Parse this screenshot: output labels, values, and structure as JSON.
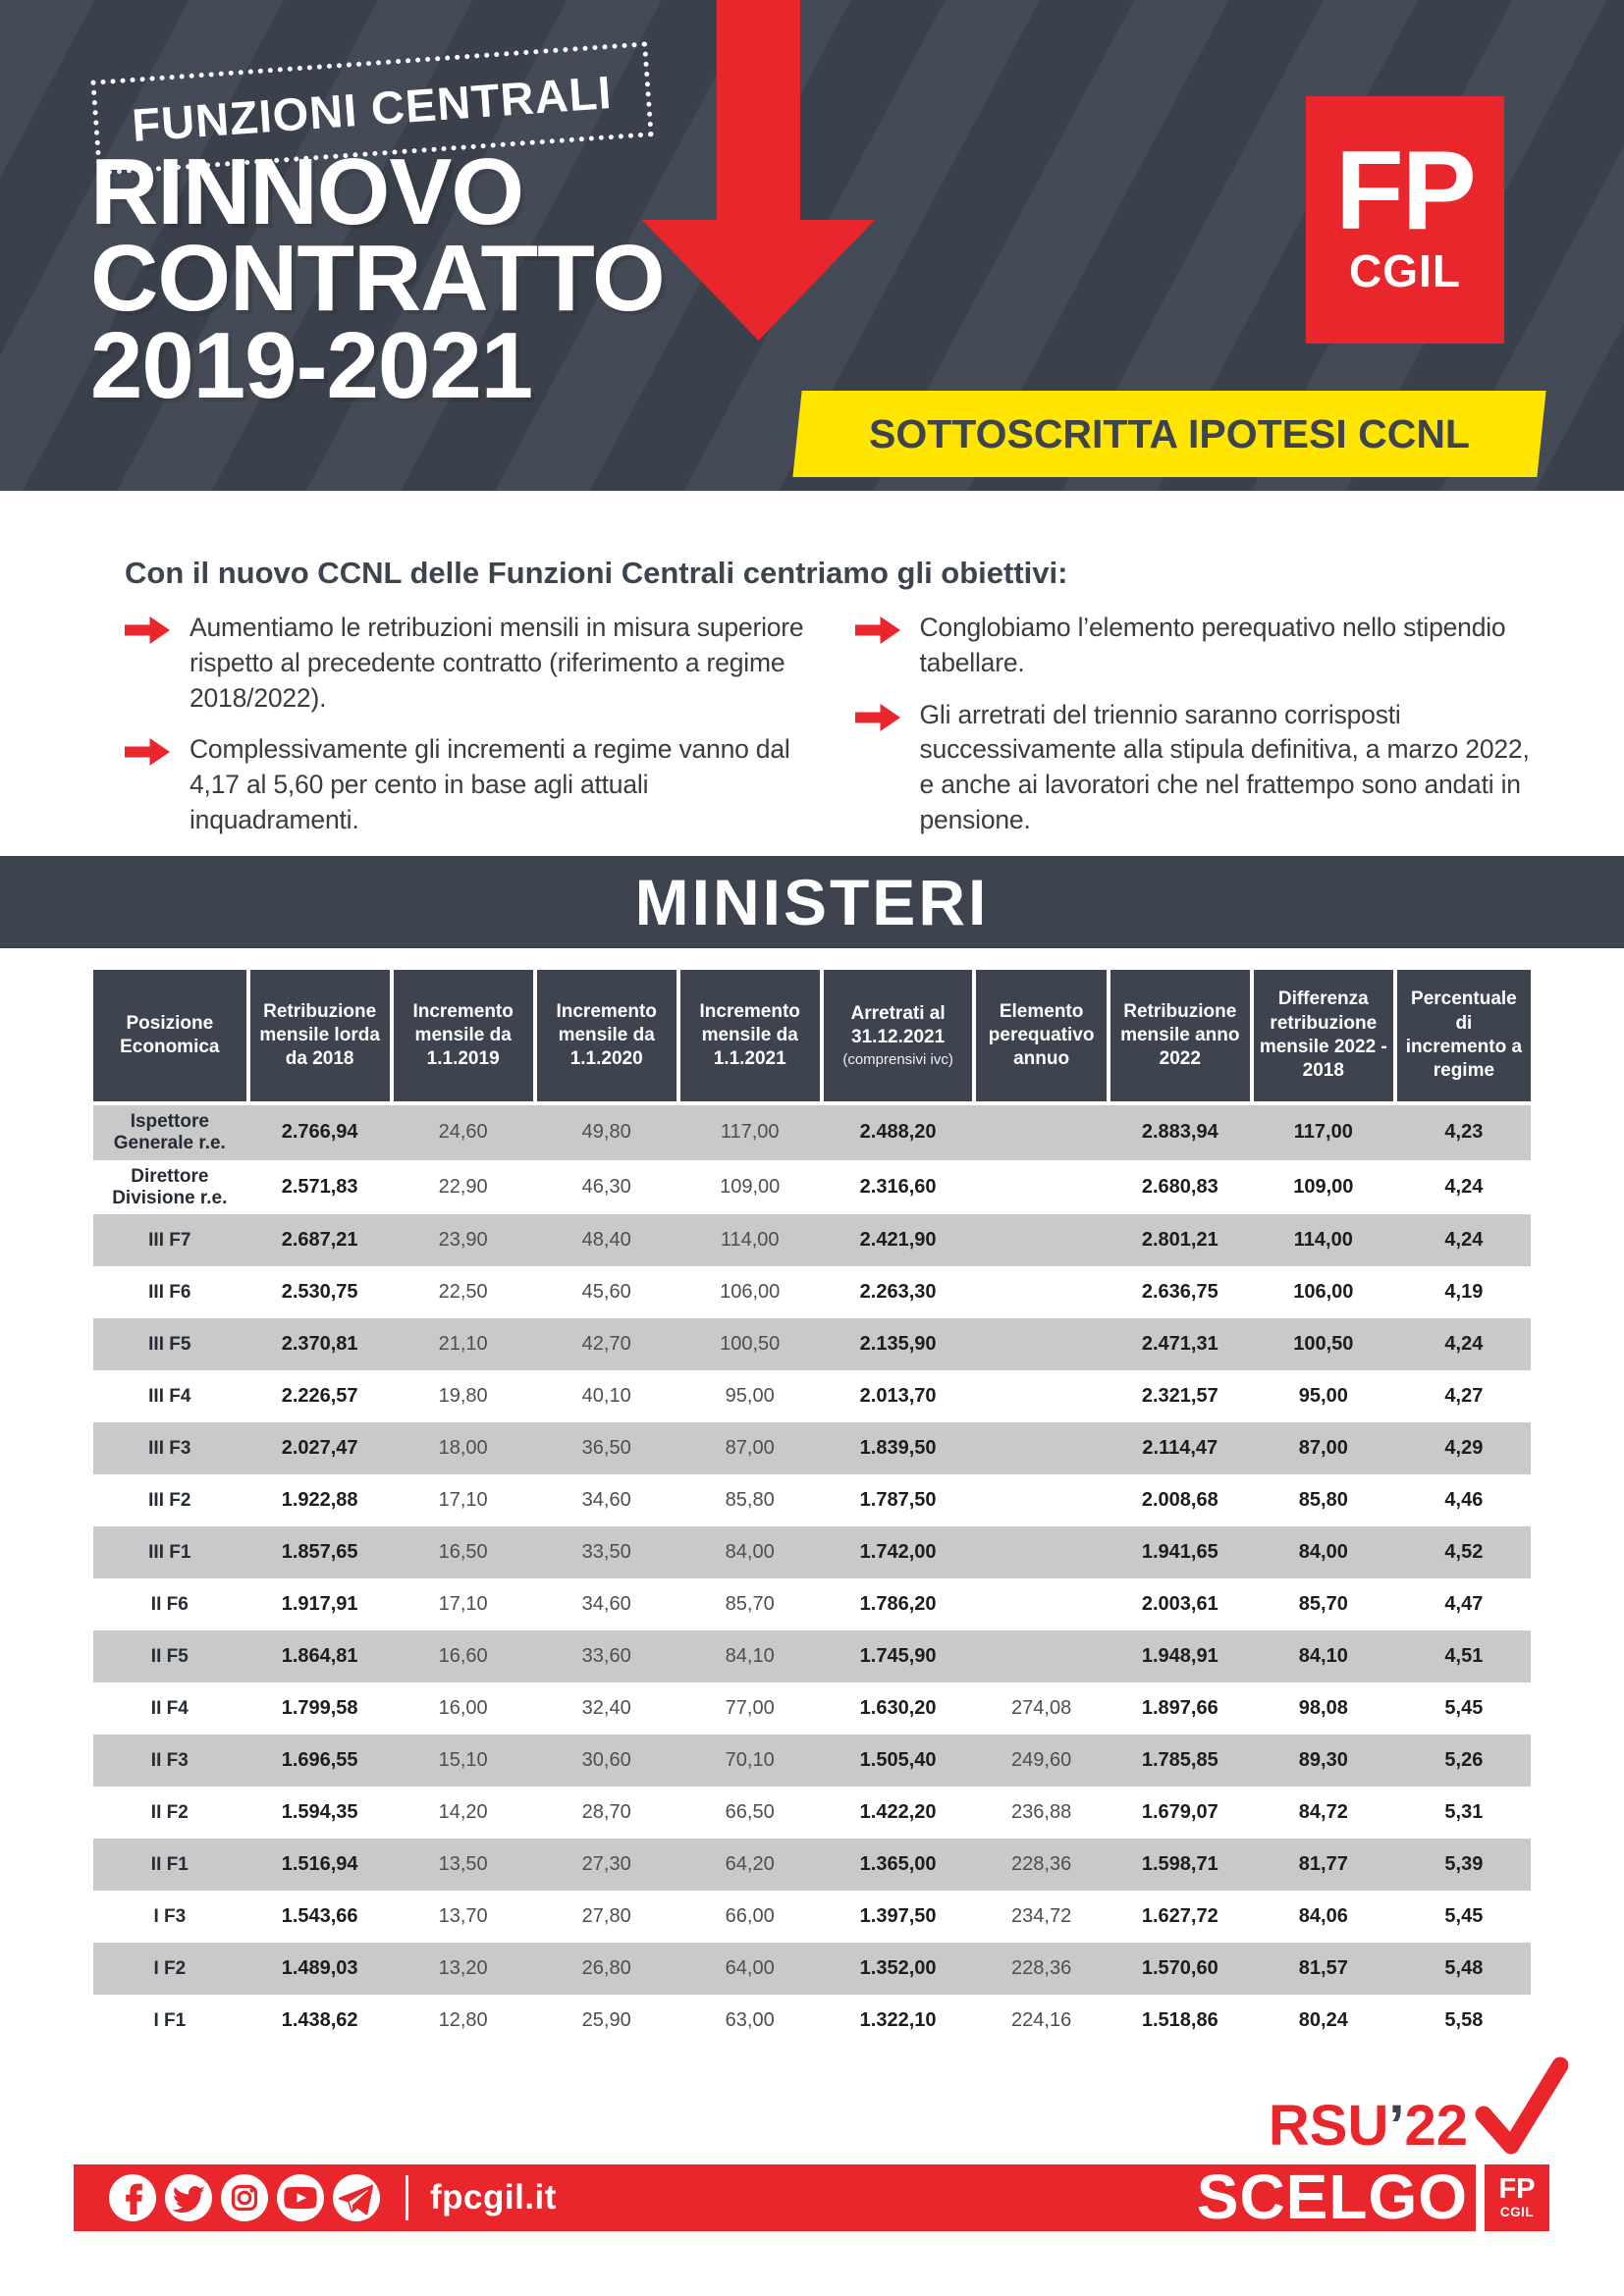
{
  "header": {
    "tag": "FUNZIONI CENTRALI",
    "title_lines": [
      "RINNOVO",
      "CONTRATTO",
      "2019-2021"
    ],
    "logo": {
      "line1": "FP",
      "line2": "CGIL"
    },
    "banner": "SOTTOSCRITTA IPOTESI CCNL"
  },
  "objectives": {
    "title": "Con il nuovo CCNL delle Funzioni Centrali centriamo gli obiettivi:",
    "left": [
      "Aumentiamo le retribuzioni mensili in misura superiore rispetto al precedente contratto (riferimento a regime 2018/2022).",
      "Complessivamente gli incrementi a regime vanno dal 4,17 al 5,60 per cento in base agli attuali inquadramenti."
    ],
    "right": [
      "Conglobiamo l’elemento perequativo nello stipendio tabellare.",
      "Gli arretrati del triennio saranno corrisposti successivamente alla stipula definitiva, a marzo 2022, e anche ai lavoratori che nel frattempo sono andati in pensione."
    ]
  },
  "section_title": "MINISTERI",
  "table": {
    "headers": [
      {
        "label": "Posizione Economica"
      },
      {
        "label": "Retribuzione mensile lorda da 2018"
      },
      {
        "label": "Incremento mensile da 1.1.2019"
      },
      {
        "label": "Incremento mensile da 1.1.2020"
      },
      {
        "label": "Incremento mensile da 1.1.2021"
      },
      {
        "label": "Arretrati al 31.12.2021",
        "sub": "(comprensivi ivc)"
      },
      {
        "label": "Elemento perequativo annuo"
      },
      {
        "label": "Retribuzione mensile anno 2022"
      },
      {
        "label": "Differenza retribuzione mensile 2022 - 2018"
      },
      {
        "label": "Percentuale di incremento a regime"
      }
    ],
    "rows": [
      {
        "cells": [
          "Ispettore Generale r.e.",
          "2.766,94",
          "24,60",
          "49,80",
          "117,00",
          "2.488,20",
          "",
          "2.883,94",
          "117,00",
          "4,23"
        ]
      },
      {
        "cells": [
          "Direttore Divisione r.e.",
          "2.571,83",
          "22,90",
          "46,30",
          "109,00",
          "2.316,60",
          "",
          "2.680,83",
          "109,00",
          "4,24"
        ]
      },
      {
        "cells": [
          "III F7",
          "2.687,21",
          "23,90",
          "48,40",
          "114,00",
          "2.421,90",
          "",
          "2.801,21",
          "114,00",
          "4,24"
        ]
      },
      {
        "cells": [
          "III F6",
          "2.530,75",
          "22,50",
          "45,60",
          "106,00",
          "2.263,30",
          "",
          "2.636,75",
          "106,00",
          "4,19"
        ]
      },
      {
        "cells": [
          "III F5",
          "2.370,81",
          "21,10",
          "42,70",
          "100,50",
          "2.135,90",
          "",
          "2.471,31",
          "100,50",
          "4,24"
        ]
      },
      {
        "cells": [
          "III F4",
          "2.226,57",
          "19,80",
          "40,10",
          "95,00",
          "2.013,70",
          "",
          "2.321,57",
          "95,00",
          "4,27"
        ]
      },
      {
        "cells": [
          "III F3",
          "2.027,47",
          "18,00",
          "36,50",
          "87,00",
          "1.839,50",
          "",
          "2.114,47",
          "87,00",
          "4,29"
        ]
      },
      {
        "cells": [
          "III F2",
          "1.922,88",
          "17,10",
          "34,60",
          "85,80",
          "1.787,50",
          "",
          "2.008,68",
          "85,80",
          "4,46"
        ]
      },
      {
        "cells": [
          "III F1",
          "1.857,65",
          "16,50",
          "33,50",
          "84,00",
          "1.742,00",
          "",
          "1.941,65",
          "84,00",
          "4,52"
        ]
      },
      {
        "cells": [
          "II F6",
          "1.917,91",
          "17,10",
          "34,60",
          "85,70",
          "1.786,20",
          "",
          "2.003,61",
          "85,70",
          "4,47"
        ]
      },
      {
        "cells": [
          "II F5",
          "1.864,81",
          "16,60",
          "33,60",
          "84,10",
          "1.745,90",
          "",
          "1.948,91",
          "84,10",
          "4,51"
        ]
      },
      {
        "cells": [
          "II F4",
          "1.799,58",
          "16,00",
          "32,40",
          "77,00",
          "1.630,20",
          "274,08",
          "1.897,66",
          "98,08",
          "5,45"
        ]
      },
      {
        "cells": [
          "II F3",
          "1.696,55",
          "15,10",
          "30,60",
          "70,10",
          "1.505,40",
          "249,60",
          "1.785,85",
          "89,30",
          "5,26"
        ]
      },
      {
        "cells": [
          "II F2",
          "1.594,35",
          "14,20",
          "28,70",
          "66,50",
          "1.422,20",
          "236,88",
          "1.679,07",
          "84,72",
          "5,31"
        ]
      },
      {
        "cells": [
          "II F1",
          "1.516,94",
          "13,50",
          "27,30",
          "64,20",
          "1.365,00",
          "228,36",
          "1.598,71",
          "81,77",
          "5,39"
        ]
      },
      {
        "cells": [
          "I F3",
          "1.543,66",
          "13,70",
          "27,80",
          "66,00",
          "1.397,50",
          "234,72",
          "1.627,72",
          "84,06",
          "5,45"
        ]
      },
      {
        "cells": [
          "I F2",
          "1.489,03",
          "13,20",
          "26,80",
          "64,00",
          "1.352,00",
          "228,36",
          "1.570,60",
          "81,57",
          "5,48"
        ]
      },
      {
        "cells": [
          "I F1",
          "1.438,62",
          "12,80",
          "25,90",
          "63,00",
          "1.322,10",
          "224,16",
          "1.518,86",
          "80,24",
          "5,58"
        ]
      }
    ]
  },
  "footer": {
    "social": [
      "facebook",
      "twitter",
      "instagram",
      "youtube",
      "telegram"
    ],
    "website": "fpcgil.it",
    "rsu": {
      "pre": "RSU",
      "apos": "’",
      "post": "22"
    },
    "scelgo": "SCELGO",
    "mini_logo": {
      "line1": "FP",
      "line2": "CGIL"
    }
  },
  "colors": {
    "slate": "#3d4450",
    "red": "#e8262b",
    "yellow": "#ffe500",
    "row_gray": "#c9c9c9"
  }
}
